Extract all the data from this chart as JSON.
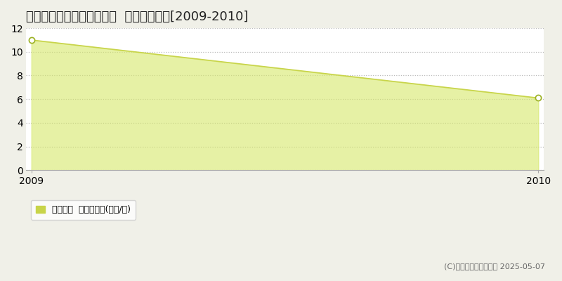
{
  "title": "肝属郡南大隅町根占横別府  住宅価格推移[2009-2010]",
  "x": [
    2009,
    2010
  ],
  "y": [
    11.0,
    6.1
  ],
  "ylim": [
    0,
    12
  ],
  "yticks": [
    0,
    2,
    4,
    6,
    8,
    10,
    12
  ],
  "xlim": [
    2009,
    2010
  ],
  "xticks": [
    2009,
    2010
  ],
  "line_color": "#c8d44a",
  "fill_color": "#d6e86a",
  "fill_alpha": 0.6,
  "marker_color": "#ffffff",
  "marker_edge_color": "#9ab020",
  "plot_bg_color": "#ffffff",
  "figure_bg_color": "#f0f0e8",
  "grid_color": "#bbbbbb",
  "legend_label": "住宅価格  平均坪単価(万円/坪)",
  "legend_square_color": "#c8d44a",
  "copyright_text": "(C)土地価格ドットコム 2025-05-07",
  "title_fontsize": 13,
  "tick_fontsize": 10,
  "legend_fontsize": 9,
  "copyright_fontsize": 8
}
